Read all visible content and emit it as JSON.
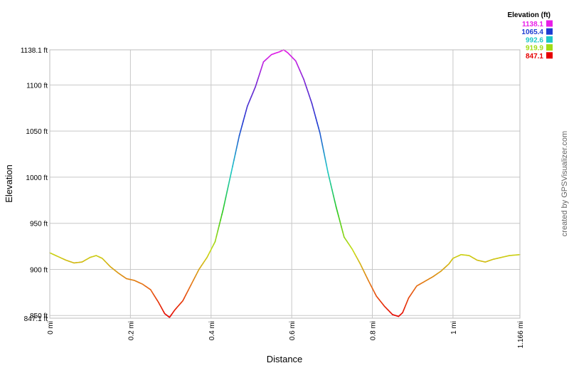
{
  "chart_data": {
    "type": "line",
    "xlabel": "Distance",
    "ylabel": "Elevation",
    "xlim": [
      0,
      1.166
    ],
    "ylim": [
      847.1,
      1138.1
    ],
    "grid": true,
    "x_ticks": [
      {
        "value": 0,
        "label": "0 mi"
      },
      {
        "value": 0.2,
        "label": "0.2 mi"
      },
      {
        "value": 0.4,
        "label": "0.4 mi"
      },
      {
        "value": 0.6,
        "label": "0.6 mi"
      },
      {
        "value": 0.8,
        "label": "0.8 mi"
      },
      {
        "value": 1.0,
        "label": "1 mi"
      },
      {
        "value": 1.166,
        "label": "1.166 mi"
      }
    ],
    "y_ticks": [
      {
        "value": 847.1,
        "label": "847.1 ft"
      },
      {
        "value": 850,
        "label": "850 ft"
      },
      {
        "value": 900,
        "label": "900 ft"
      },
      {
        "value": 950,
        "label": "950 ft"
      },
      {
        "value": 1000,
        "label": "1000 ft"
      },
      {
        "value": 1050,
        "label": "1050 ft"
      },
      {
        "value": 1100,
        "label": "1100 ft"
      },
      {
        "value": 1138.1,
        "label": "1138.1 ft"
      }
    ],
    "series": [
      {
        "x": [
          0,
          0.02,
          0.04,
          0.06,
          0.08,
          0.1,
          0.115,
          0.13,
          0.15,
          0.17,
          0.19,
          0.21,
          0.23,
          0.25,
          0.27,
          0.285,
          0.297,
          0.31,
          0.33,
          0.35,
          0.37,
          0.39,
          0.41,
          0.43,
          0.45,
          0.47,
          0.49,
          0.51,
          0.53,
          0.55,
          0.57,
          0.58,
          0.59,
          0.61,
          0.63,
          0.65,
          0.67,
          0.69,
          0.71,
          0.73,
          0.75,
          0.77,
          0.79,
          0.81,
          0.83,
          0.85,
          0.865,
          0.875,
          0.89,
          0.91,
          0.93,
          0.95,
          0.97,
          0.99,
          1.0,
          1.02,
          1.04,
          1.06,
          1.08,
          1.1,
          1.12,
          1.14,
          1.166
        ],
        "y": [
          918,
          914,
          910,
          907,
          908,
          913,
          915,
          912,
          903,
          896,
          890,
          888,
          884,
          878,
          864,
          852,
          848,
          856,
          866,
          883,
          900,
          913,
          930,
          965,
          1005,
          1045,
          1077,
          1098,
          1125,
          1133,
          1136,
          1138.1,
          1135,
          1126,
          1106,
          1080,
          1048,
          1005,
          968,
          935,
          922,
          906,
          888,
          871,
          860,
          851,
          849,
          853,
          869,
          882,
          887,
          892,
          898,
          906,
          912,
          916,
          915,
          910,
          908,
          911,
          913,
          915,
          916
        ]
      }
    ],
    "legend": {
      "title": "Elevation (ft)",
      "placement": "top-right",
      "entries": [
        {
          "label": "1138.1",
          "color": "#e81ee8"
        },
        {
          "label": "1065.4",
          "color": "#1e3cd2"
        },
        {
          "label": "992.6",
          "color": "#1ec8c8"
        },
        {
          "label": "919.9",
          "color": "#a0dc14"
        },
        {
          "label": "847.1",
          "color": "#e60000"
        }
      ]
    },
    "credit": "created by GPSVisualizer.com"
  }
}
